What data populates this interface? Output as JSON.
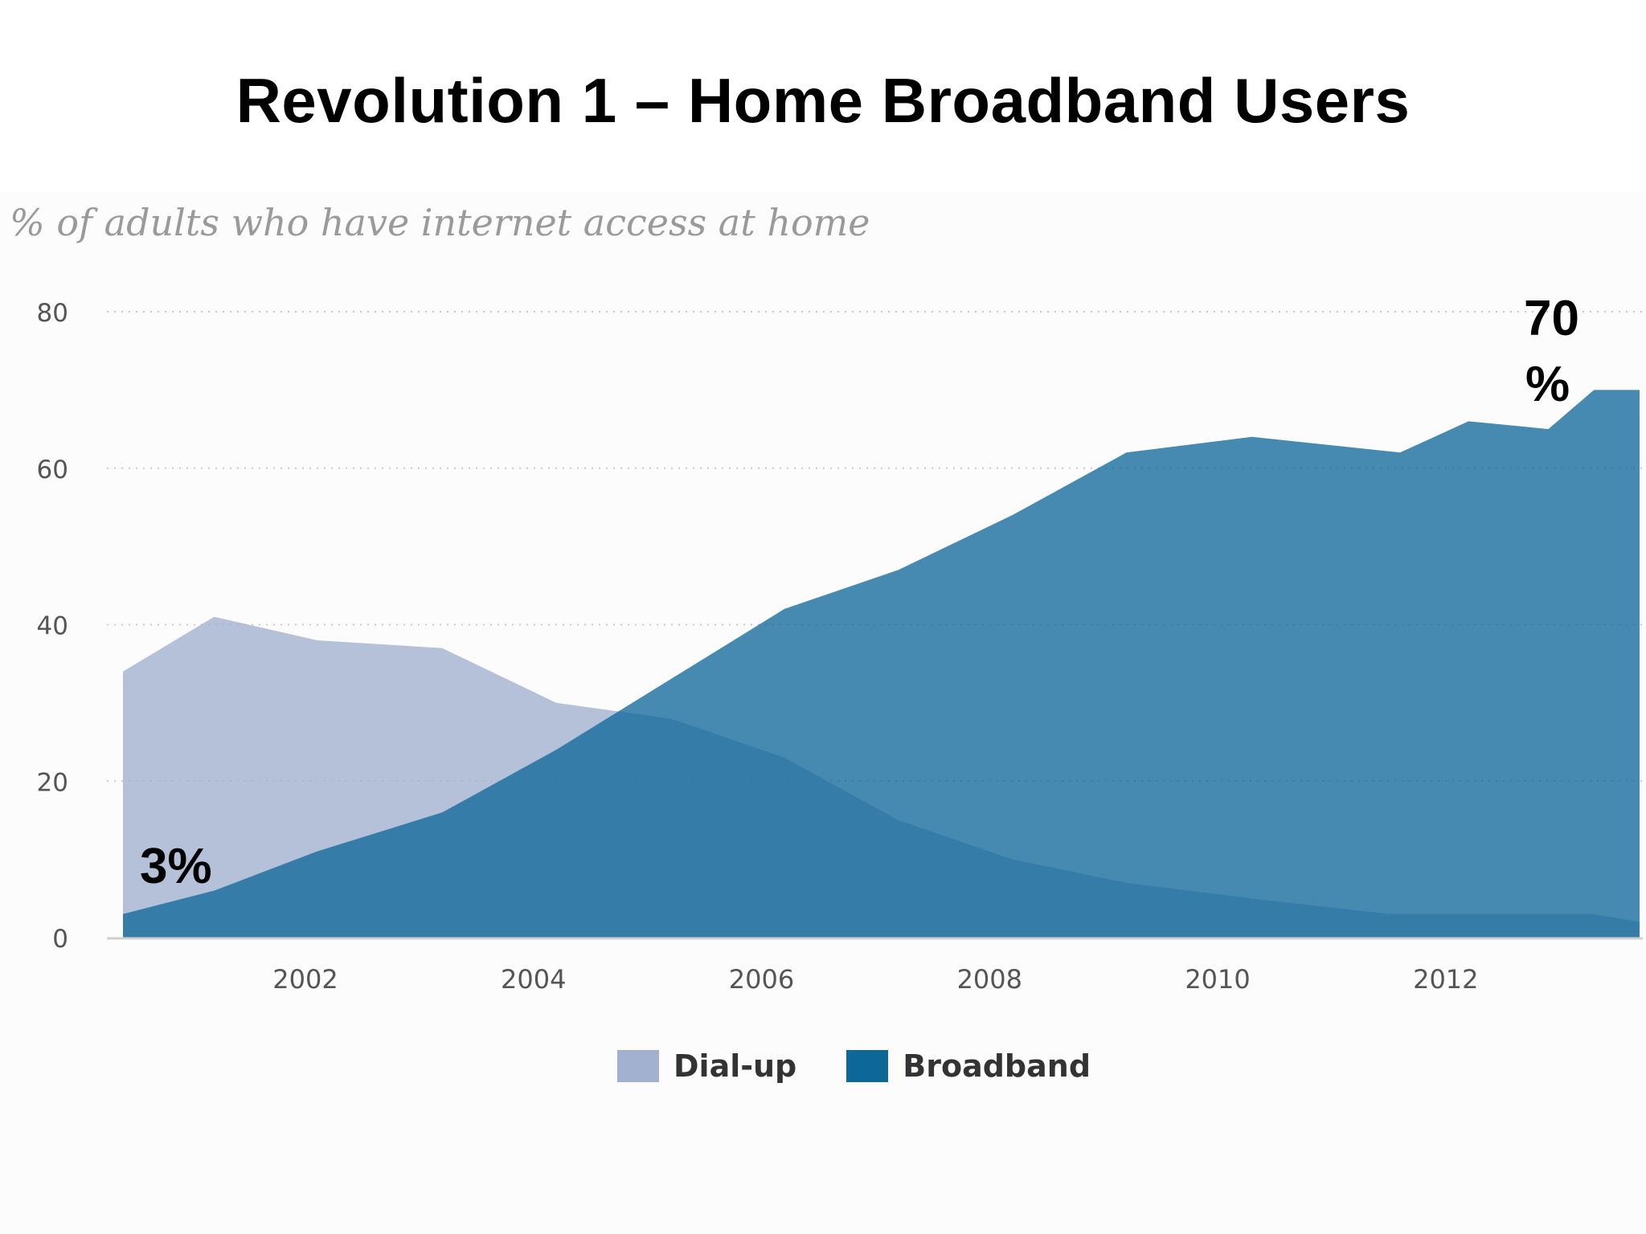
{
  "title": "Revolution 1 – Home Broadband Users",
  "chart_data": {
    "type": "area",
    "subtitle": "% of adults who have internet access at home",
    "xlabel": "",
    "ylabel": "",
    "xlim": [
      2000.4,
      2013.7
    ],
    "ylim": [
      0,
      80
    ],
    "y_ticks": [
      0,
      20,
      40,
      60,
      80
    ],
    "x_ticks": [
      2002,
      2004,
      2006,
      2008,
      2010,
      2012
    ],
    "grid": "horizontal dotted",
    "legend_position": "bottom-center",
    "series": [
      {
        "name": "Dial-up",
        "color": "#a3b1d0",
        "points": [
          [
            2000.4,
            34
          ],
          [
            2001.2,
            41
          ],
          [
            2002.1,
            38
          ],
          [
            2003.2,
            37
          ],
          [
            2004.2,
            30
          ],
          [
            2005.2,
            28
          ],
          [
            2006.2,
            23
          ],
          [
            2007.2,
            15
          ],
          [
            2008.2,
            10
          ],
          [
            2009.2,
            7
          ],
          [
            2010.3,
            5
          ],
          [
            2011.5,
            3
          ],
          [
            2012.6,
            3
          ],
          [
            2013.3,
            3
          ],
          [
            2013.7,
            2
          ]
        ]
      },
      {
        "name": "Broadband",
        "color": "#0e6799",
        "points": [
          [
            2000.4,
            3
          ],
          [
            2001.2,
            6
          ],
          [
            2002.1,
            11
          ],
          [
            2003.2,
            16
          ],
          [
            2004.2,
            24
          ],
          [
            2005.2,
            33
          ],
          [
            2006.2,
            42
          ],
          [
            2007.2,
            47
          ],
          [
            2008.2,
            54
          ],
          [
            2009.2,
            62
          ],
          [
            2010.3,
            64
          ],
          [
            2011.6,
            62
          ],
          [
            2012.2,
            66
          ],
          [
            2012.9,
            65
          ],
          [
            2013.3,
            70
          ],
          [
            2013.7,
            70
          ]
        ]
      }
    ],
    "annotations": [
      "3%",
      "70",
      "%"
    ]
  }
}
